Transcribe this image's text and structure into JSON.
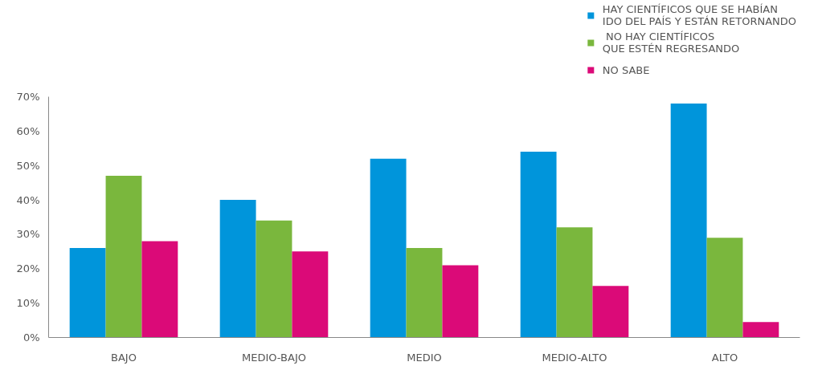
{
  "chart_data": {
    "type": "bar",
    "categories": [
      "BAJO",
      "MEDIO-BAJO",
      "MEDIO",
      "MEDIO-ALTO",
      "ALTO"
    ],
    "series": [
      {
        "name": "HAY CIENTÍFICOS QUE SE HABÍAN\nIDO DEL PAÍS Y ESTÁN RETORNANDO",
        "color": "#0095db",
        "values": [
          26,
          40,
          52,
          54,
          68
        ]
      },
      {
        "name": " NO HAY CIENTÍFICOS\nQUE ESTÉN REGRESANDO",
        "color": "#7ab73d",
        "values": [
          47,
          34,
          26,
          32,
          29
        ]
      },
      {
        "name": "NO SABE",
        "color": "#db0a78",
        "values": [
          28,
          25,
          21,
          15,
          4.5
        ]
      }
    ],
    "ylim": [
      0,
      70
    ],
    "yticks": [
      {
        "value": 0,
        "label": "0%"
      },
      {
        "value": 10,
        "label": "10%"
      },
      {
        "value": 20,
        "label": "20%"
      },
      {
        "value": 30,
        "label": "30%"
      },
      {
        "value": 40,
        "label": "40%"
      },
      {
        "value": 50,
        "label": "50%"
      },
      {
        "value": 60,
        "label": "60%"
      },
      {
        "value": 70,
        "label": "70%"
      }
    ],
    "grid": false,
    "legend": "top right"
  }
}
